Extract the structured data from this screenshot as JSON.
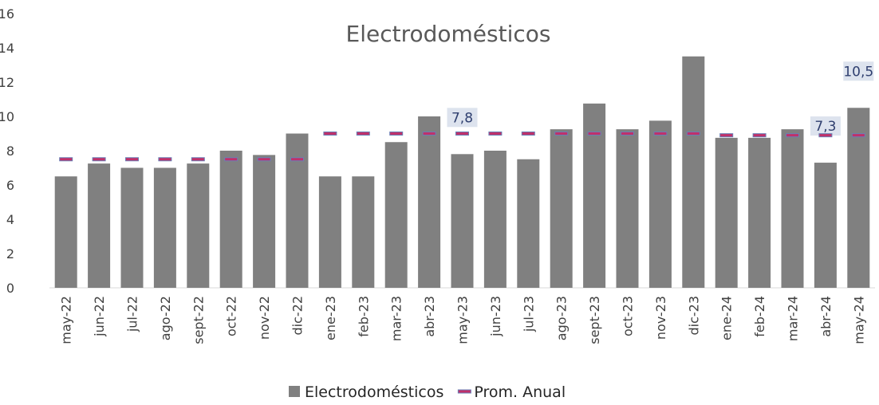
{
  "chart_data": {
    "type": "bar",
    "title": "Electrodomésticos",
    "categories": [
      "may-22",
      "jun-22",
      "jul-22",
      "ago-22",
      "sept-22",
      "oct-22",
      "nov-22",
      "dic-22",
      "ene-23",
      "feb-23",
      "mar-23",
      "abr-23",
      "may-23",
      "jun-23",
      "jul-23",
      "ago-23",
      "sept-23",
      "oct-23",
      "nov-23",
      "dic-23",
      "ene-24",
      "feb-24",
      "mar-24",
      "abr-24",
      "may-24"
    ],
    "series": [
      {
        "name": "Electrodomésticos",
        "color": "#808080",
        "values": [
          6.5,
          7.25,
          7.0,
          7.0,
          7.25,
          8.0,
          7.75,
          9.0,
          6.5,
          6.5,
          8.5,
          10.0,
          7.8,
          8.0,
          7.5,
          9.25,
          10.75,
          9.25,
          9.75,
          13.5,
          8.75,
          8.75,
          9.25,
          7.3,
          10.5
        ],
        "value_labels": [
          null,
          null,
          null,
          null,
          null,
          null,
          null,
          null,
          null,
          null,
          null,
          null,
          "7,8",
          null,
          null,
          null,
          null,
          null,
          null,
          null,
          null,
          null,
          null,
          "7,3",
          "10,5"
        ]
      },
      {
        "name": "Prom. Anual",
        "color": "#c0306a",
        "marker": "dash",
        "values": [
          7.5,
          7.5,
          7.5,
          7.5,
          7.5,
          7.5,
          7.5,
          7.5,
          9.0,
          9.0,
          9.0,
          9.0,
          9.0,
          9.0,
          9.0,
          9.0,
          9.0,
          9.0,
          9.0,
          9.0,
          8.9,
          8.9,
          8.9,
          8.9,
          8.9
        ]
      }
    ],
    "ylim": [
      0,
      16
    ],
    "yticks": [
      0,
      2,
      4,
      6,
      8,
      10,
      12,
      14,
      16
    ],
    "legend": "bottom"
  }
}
